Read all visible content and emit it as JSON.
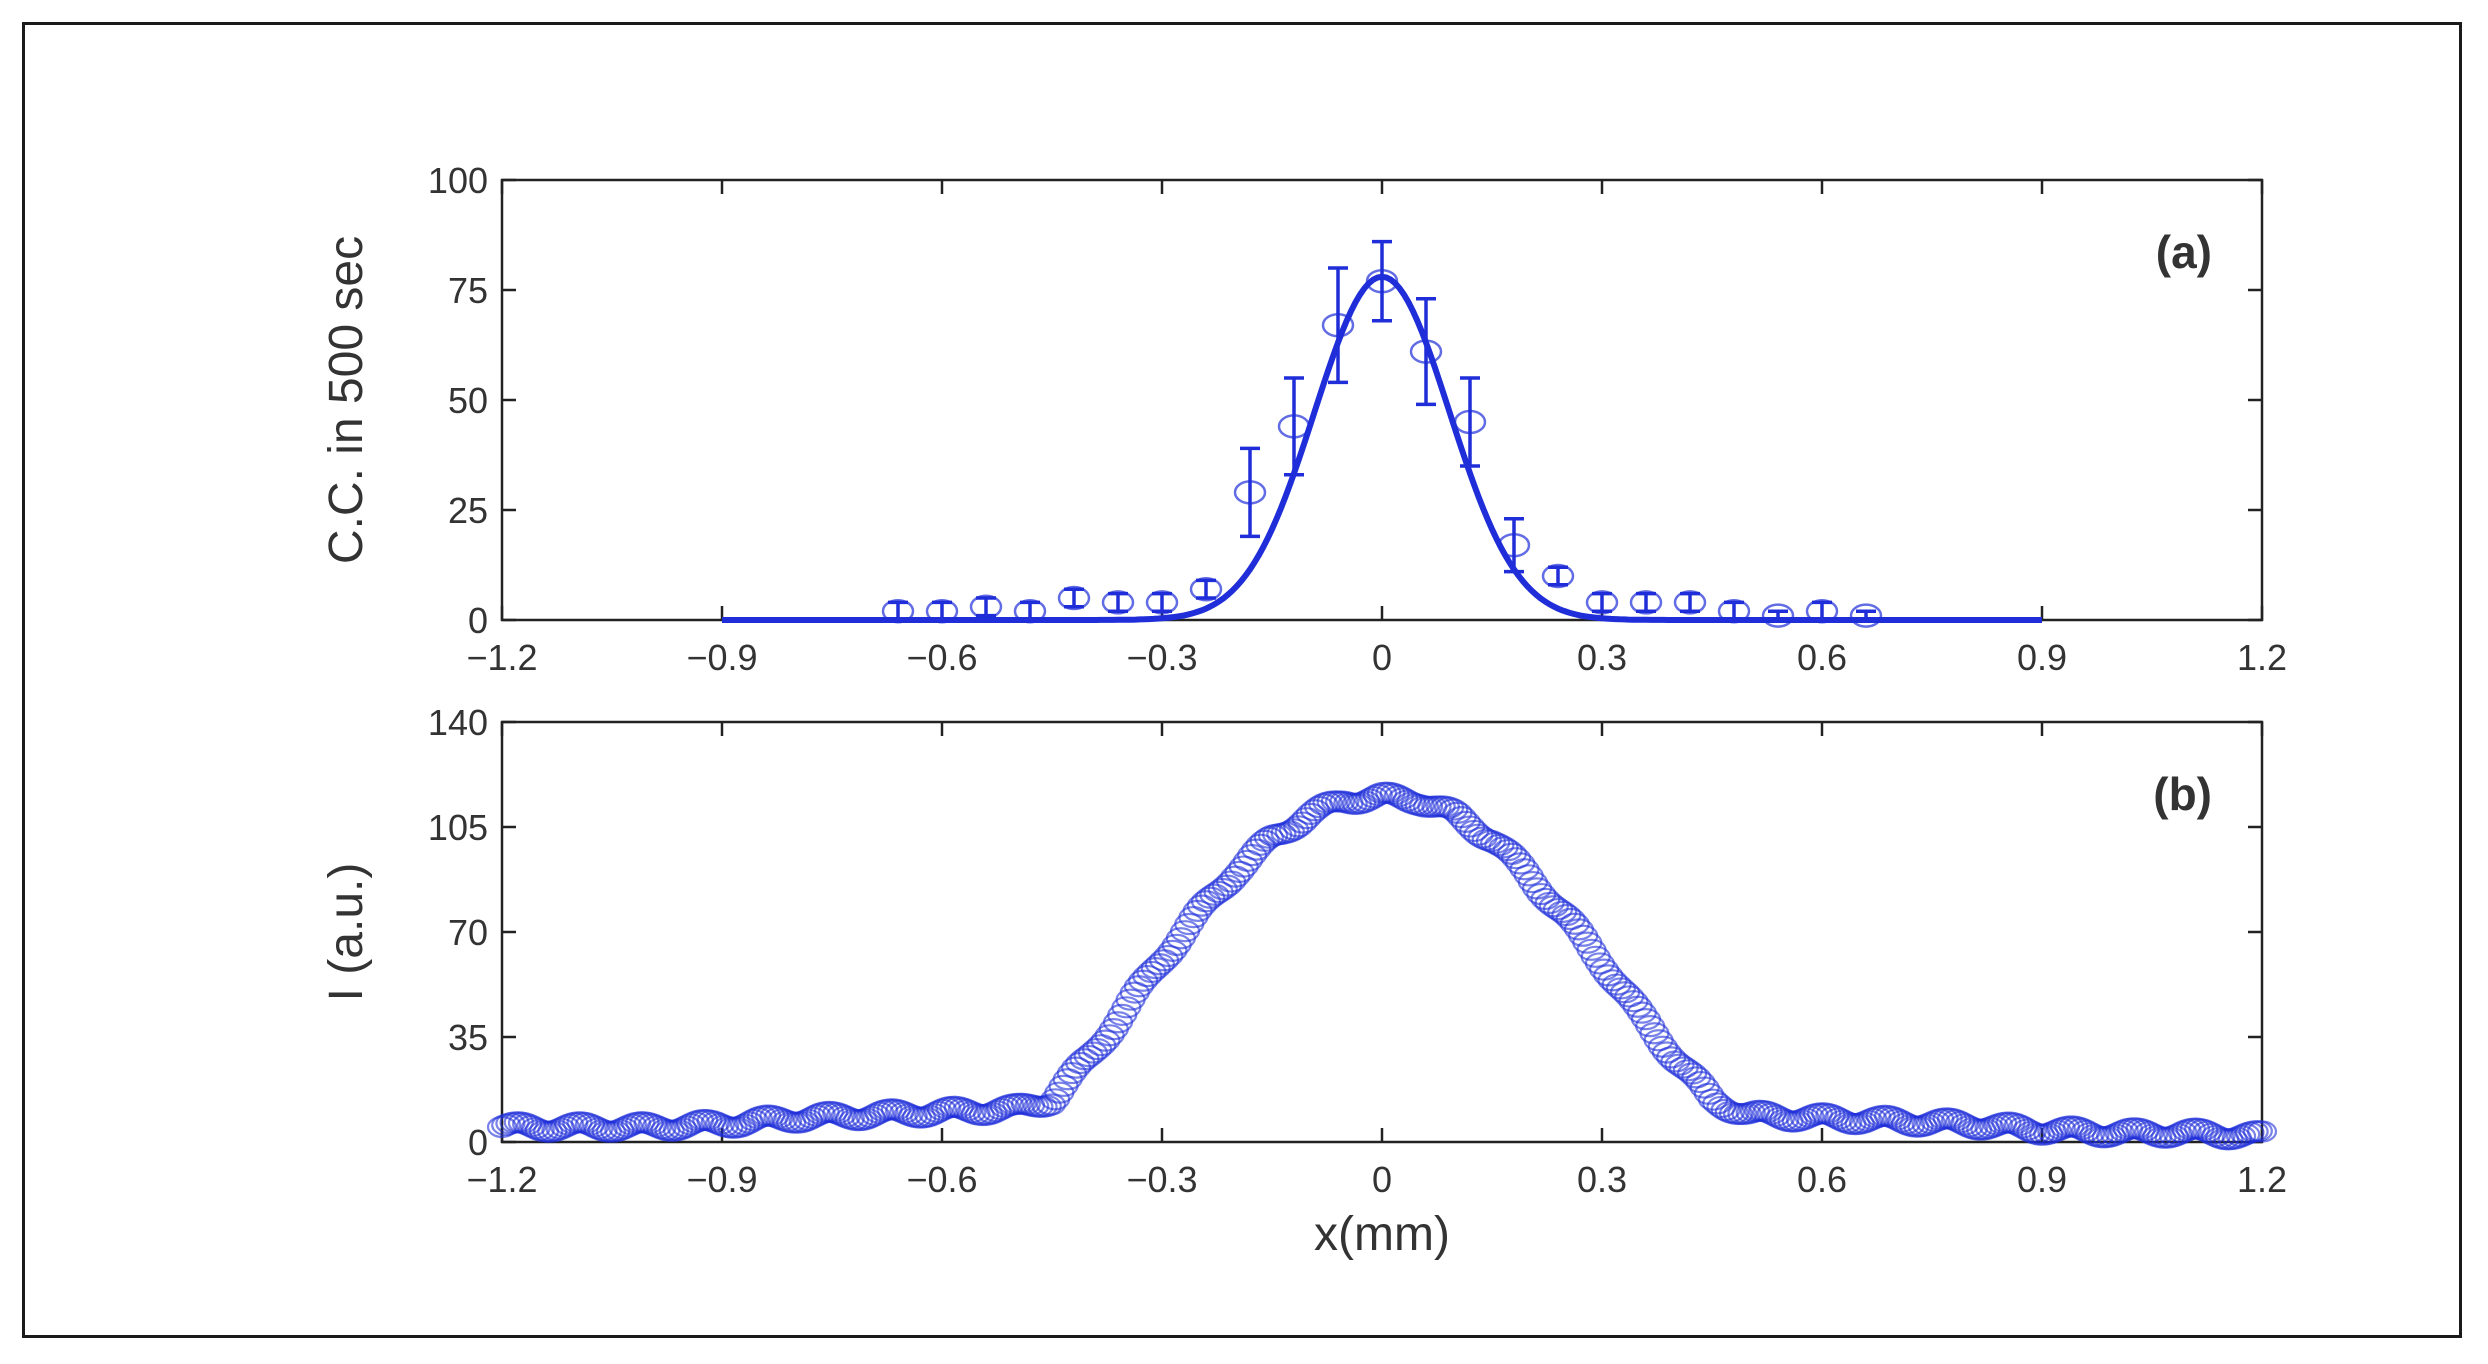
{
  "chart_data": [
    {
      "type": "scatter",
      "panel_label": "(a)",
      "xlabel": "",
      "ylabel": "C.C. in 500 sec",
      "xlim": [
        -1.2,
        1.2
      ],
      "ylim": [
        0,
        100
      ],
      "x_ticks": [
        "−1.2",
        "−0.9",
        "−0.6",
        "−0.3",
        "0",
        "0.3",
        "0.6",
        "0.9",
        "1.2"
      ],
      "y_ticks": [
        "0",
        "25",
        "50",
        "75",
        "100"
      ],
      "points": [
        {
          "x": -0.66,
          "y": 2,
          "err": 2
        },
        {
          "x": -0.6,
          "y": 2,
          "err": 2
        },
        {
          "x": -0.54,
          "y": 3,
          "err": 2
        },
        {
          "x": -0.48,
          "y": 2,
          "err": 2
        },
        {
          "x": -0.42,
          "y": 5,
          "err": 2
        },
        {
          "x": -0.36,
          "y": 4,
          "err": 2
        },
        {
          "x": -0.3,
          "y": 4,
          "err": 2
        },
        {
          "x": -0.24,
          "y": 7,
          "err": 2
        },
        {
          "x": -0.18,
          "y": 29,
          "err": 10
        },
        {
          "x": -0.12,
          "y": 44,
          "err": 11
        },
        {
          "x": -0.06,
          "y": 67,
          "err": 13
        },
        {
          "x": 0.0,
          "y": 77,
          "err": 9
        },
        {
          "x": 0.06,
          "y": 61,
          "err": 12
        },
        {
          "x": 0.12,
          "y": 45,
          "err": 10
        },
        {
          "x": 0.18,
          "y": 17,
          "err": 6
        },
        {
          "x": 0.24,
          "y": 10,
          "err": 2
        },
        {
          "x": 0.3,
          "y": 4,
          "err": 2
        },
        {
          "x": 0.36,
          "y": 4,
          "err": 2
        },
        {
          "x": 0.42,
          "y": 4,
          "err": 2
        },
        {
          "x": 0.48,
          "y": 2,
          "err": 2
        },
        {
          "x": 0.54,
          "y": 1,
          "err": 1
        },
        {
          "x": 0.6,
          "y": 2,
          "err": 2
        },
        {
          "x": 0.66,
          "y": 1,
          "err": 1
        }
      ],
      "fit": {
        "type": "gaussian",
        "amplitude": 78,
        "center": 0,
        "sigma": 0.092,
        "x_range": [
          -0.9,
          0.9
        ]
      },
      "grid": false,
      "color": "#1f2ed8"
    },
    {
      "type": "scatter",
      "panel_label": "(b)",
      "xlabel": "x(mm)",
      "ylabel": "I (a.u.)",
      "xlim": [
        -1.2,
        1.2
      ],
      "ylim": [
        0,
        140
      ],
      "x_ticks": [
        "−1.2",
        "−0.9",
        "−0.6",
        "−0.3",
        "0",
        "0.3",
        "0.6",
        "0.9",
        "1.2"
      ],
      "y_ticks": [
        "0",
        "35",
        "70",
        "105",
        "140"
      ],
      "x": [
        -1.2,
        -1.1,
        -1.0,
        -0.9,
        -0.8,
        -0.7,
        -0.6,
        -0.5,
        -0.45,
        -0.4,
        -0.35,
        -0.3,
        -0.25,
        -0.2,
        -0.15,
        -0.1,
        -0.05,
        0.0,
        0.05,
        0.1,
        0.15,
        0.2,
        0.25,
        0.3,
        0.35,
        0.4,
        0.45,
        0.5,
        0.6,
        0.7,
        0.8,
        0.9,
        1.0,
        1.1,
        1.2
      ],
      "y": [
        5,
        5,
        5,
        6,
        8,
        9,
        10,
        11,
        14,
        28,
        44,
        61,
        76,
        90,
        101,
        109,
        114,
        115,
        114,
        109,
        101,
        89,
        75,
        60,
        43,
        28,
        14,
        9,
        8,
        7,
        6,
        4,
        3,
        3,
        2
      ],
      "grid": false,
      "color": "#1f2ed8"
    }
  ]
}
